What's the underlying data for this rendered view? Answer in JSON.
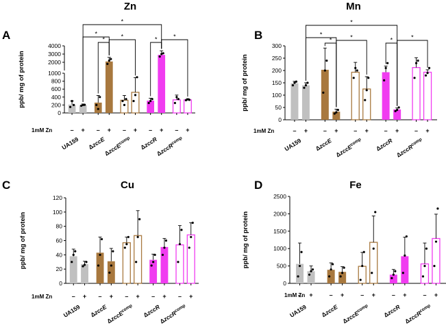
{
  "chart_data": [
    {
      "panel": "A",
      "title": "Zn",
      "type": "bar",
      "ylabel": "ppb/ mg of protein",
      "treatment_label": "1mM Zn",
      "pm": [
        "–",
        "+"
      ],
      "axis": {
        "type": "broken",
        "lower_range": [
          0,
          1000
        ],
        "upper_range": [
          1000,
          4000
        ],
        "lower_ticks": [
          "0",
          "200",
          "400",
          "600",
          "800",
          "1000"
        ],
        "upper_ticks": [
          "1000",
          "2000",
          "3000",
          "4000"
        ]
      },
      "categories": [
        {
          "label": "UA159",
          "base": "UA159",
          "sup": ""
        },
        {
          "label": "ΔzccE",
          "base": "ΔzccE",
          "sup": ""
        },
        {
          "label": "ΔzccEcomp",
          "base": "ΔzccE",
          "sup": "comp"
        },
        {
          "label": "ΔzccR",
          "base": "ΔzccR",
          "sup": ""
        },
        {
          "label": "ΔzccRcomp",
          "base": "ΔzccR",
          "sup": "comp"
        }
      ],
      "colors": [
        "#c0c0c0",
        "#a8783e",
        "#a8783e",
        "#f03cf0",
        "#f03cf0"
      ],
      "fill": [
        true,
        true,
        false,
        true,
        false
      ],
      "values": [
        [
          210,
          195
        ],
        [
          260,
          2100
        ],
        [
          320,
          520
        ],
        [
          310,
          2900
        ],
        [
          330,
          330
        ]
      ],
      "errors": [
        [
          90,
          30
        ],
        [
          180,
          500
        ],
        [
          120,
          370
        ],
        [
          60,
          500
        ],
        [
          120,
          30
        ]
      ],
      "points": [
        [
          [
            150,
            300,
            200
          ],
          [
            180,
            200,
            205
          ]
        ],
        [
          [
            200,
            100,
            400
          ],
          [
            1800,
            2200,
            2400
          ]
        ],
        [
          [
            300,
            200,
            350
          ],
          [
            300,
            450,
            900
          ]
        ],
        [
          [
            250,
            300,
            350
          ],
          [
            2700,
            3000,
            3100
          ]
        ],
        [
          [
            250,
            400,
            350
          ],
          [
            320,
            340,
            330
          ]
        ]
      ],
      "significance": [
        {
          "from": [
            0,
            1
          ],
          "to": [
            1,
            1
          ],
          "label": "*"
        },
        {
          "from": [
            1,
            0
          ],
          "to": [
            1,
            1
          ],
          "label": "*"
        },
        {
          "from": [
            1,
            1
          ],
          "to": [
            2,
            1
          ],
          "label": "*"
        },
        {
          "from": [
            3,
            0
          ],
          "to": [
            3,
            1
          ],
          "label": "*"
        },
        {
          "from": [
            3,
            1
          ],
          "to": [
            4,
            1
          ],
          "label": "*"
        },
        {
          "from": [
            0,
            1
          ],
          "to": [
            3,
            1
          ],
          "label": "*"
        }
      ]
    },
    {
      "panel": "B",
      "title": "Mn",
      "type": "bar",
      "ylabel": "ppb/ mg of protein",
      "treatment_label": "1mM Zn",
      "pm": [
        "–",
        "+"
      ],
      "ylim": [
        0,
        300
      ],
      "yticks": [
        0,
        50,
        100,
        150,
        200,
        250,
        300
      ],
      "categories": [
        {
          "label": "UA159",
          "base": "UA159",
          "sup": ""
        },
        {
          "label": "ΔzccE",
          "base": "ΔzccE",
          "sup": ""
        },
        {
          "label": "ΔzccEcomp",
          "base": "ΔzccE",
          "sup": "comp"
        },
        {
          "label": "ΔzccR",
          "base": "ΔzccR",
          "sup": ""
        },
        {
          "label": "ΔzccRcomp",
          "base": "ΔzccR",
          "sup": "comp"
        }
      ],
      "colors": [
        "#c0c0c0",
        "#a8783e",
        "#a8783e",
        "#f03cf0",
        "#f03cf0"
      ],
      "fill": [
        true,
        true,
        false,
        true,
        false
      ],
      "values": [
        [
          148,
          140
        ],
        [
          203,
          33
        ],
        [
          193,
          125
        ],
        [
          193,
          42
        ],
        [
          212,
          193
        ]
      ],
      "errors": [
        [
          8,
          10
        ],
        [
          88,
          10
        ],
        [
          40,
          50
        ],
        [
          25,
          6
        ],
        [
          40,
          10
        ]
      ],
      "points": [
        [
          [
            140,
            150,
            155
          ],
          [
            130,
            140,
            150
          ]
        ],
        [
          [
            110,
            200,
            240
          ],
          [
            25,
            30,
            40
          ]
        ],
        [
          [
            170,
            210,
            200
          ],
          [
            80,
            120,
            170
          ]
        ],
        [
          [
            160,
            210,
            230
          ],
          [
            35,
            40,
            50
          ]
        ],
        [
          [
            170,
            230,
            240
          ],
          [
            180,
            190,
            210
          ]
        ]
      ],
      "significance": [
        {
          "from": [
            0,
            1
          ],
          "to": [
            1,
            1
          ],
          "label": "*"
        },
        {
          "from": [
            1,
            0
          ],
          "to": [
            1,
            1
          ],
          "label": "*"
        },
        {
          "from": [
            1,
            1
          ],
          "to": [
            2,
            1
          ],
          "label": "*"
        },
        {
          "from": [
            3,
            0
          ],
          "to": [
            3,
            1
          ],
          "label": "*"
        },
        {
          "from": [
            3,
            1
          ],
          "to": [
            4,
            1
          ],
          "label": "*"
        },
        {
          "from": [
            0,
            1
          ],
          "to": [
            3,
            1
          ],
          "label": "*"
        }
      ]
    },
    {
      "panel": "C",
      "title": "Cu",
      "type": "bar",
      "ylabel": "ppb/ mg of protein",
      "treatment_label": "1mM Zn",
      "pm": [
        "–",
        "+"
      ],
      "ylim": [
        0,
        120
      ],
      "yticks": [
        0,
        20,
        40,
        60,
        80,
        100,
        120
      ],
      "categories": [
        {
          "label": "UA159",
          "base": "UA159",
          "sup": ""
        },
        {
          "label": "ΔzccE",
          "base": "ΔzccE",
          "sup": ""
        },
        {
          "label": "ΔzccEcomp",
          "base": "ΔzccE",
          "sup": "comp"
        },
        {
          "label": "ΔzccR",
          "base": "ΔzccR",
          "sup": ""
        },
        {
          "label": "ΔzccRcomp",
          "base": "ΔzccR",
          "sup": "comp"
        }
      ],
      "colors": [
        "#c0c0c0",
        "#a8783e",
        "#a8783e",
        "#f03cf0",
        "#f03cf0"
      ],
      "fill": [
        true,
        true,
        false,
        true,
        false
      ],
      "values": [
        [
          38,
          27
        ],
        [
          43,
          31
        ],
        [
          57,
          67
        ],
        [
          33,
          51
        ],
        [
          54,
          68
        ]
      ],
      "errors": [
        [
          10,
          4
        ],
        [
          22,
          18
        ],
        [
          8,
          35
        ],
        [
          8,
          12
        ],
        [
          27,
          17
        ]
      ],
      "points": [
        [
          [
            30,
            40,
            45
          ],
          [
            24,
            26,
            30
          ]
        ],
        [
          [
            25,
            40,
            62
          ],
          [
            15,
            25,
            45
          ]
        ],
        [
          [
            50,
            55,
            65
          ],
          [
            30,
            65,
            90
          ]
        ],
        [
          [
            25,
            30,
            40
          ],
          [
            40,
            50,
            60
          ]
        ],
        [
          [
            30,
            55,
            75
          ],
          [
            50,
            65,
            85
          ]
        ]
      ],
      "significance": []
    },
    {
      "panel": "D",
      "title": "Fe",
      "type": "bar",
      "ylabel": "ppb/ mg of protein",
      "treatment_label": "1mM Zn",
      "pm": [
        "–",
        "+"
      ],
      "ylim": [
        0,
        2500
      ],
      "yticks": [
        0,
        500,
        1000,
        1500,
        2000,
        2500
      ],
      "categories": [
        {
          "label": "UA159",
          "base": "UA159",
          "sup": ""
        },
        {
          "label": "ΔzccE",
          "base": "ΔzccE",
          "sup": ""
        },
        {
          "label": "ΔzccEcomp",
          "base": "ΔzccE",
          "sup": "comp"
        },
        {
          "label": "ΔzccR",
          "base": "ΔzccR",
          "sup": ""
        },
        {
          "label": "ΔzccRcomp",
          "base": "ΔzccR",
          "sup": "comp"
        }
      ],
      "colors": [
        "#c0c0c0",
        "#a8783e",
        "#a8783e",
        "#f03cf0",
        "#f03cf0"
      ],
      "fill": [
        true,
        true,
        false,
        true,
        false
      ],
      "values": [
        [
          560,
          350
        ],
        [
          390,
          330
        ],
        [
          490,
          1180
        ],
        [
          250,
          780
        ],
        [
          560,
          1290
        ]
      ],
      "errors": [
        [
          600,
          150
        ],
        [
          200,
          150
        ],
        [
          400,
          760
        ],
        [
          150,
          550
        ],
        [
          600,
          700
        ]
      ],
      "points": [
        [
          [
            200,
            500,
            900
          ],
          [
            250,
            350,
            400
          ]
        ],
        [
          [
            200,
            400,
            550
          ],
          [
            200,
            300,
            450
          ]
        ],
        [
          [
            100,
            500,
            900
          ],
          [
            300,
            1000,
            2050
          ]
        ],
        [
          [
            150,
            250,
            350
          ],
          [
            300,
            800,
            1350
          ]
        ],
        [
          [
            200,
            500,
            1000
          ],
          [
            500,
            1200,
            2150
          ]
        ]
      ],
      "significance": []
    }
  ]
}
